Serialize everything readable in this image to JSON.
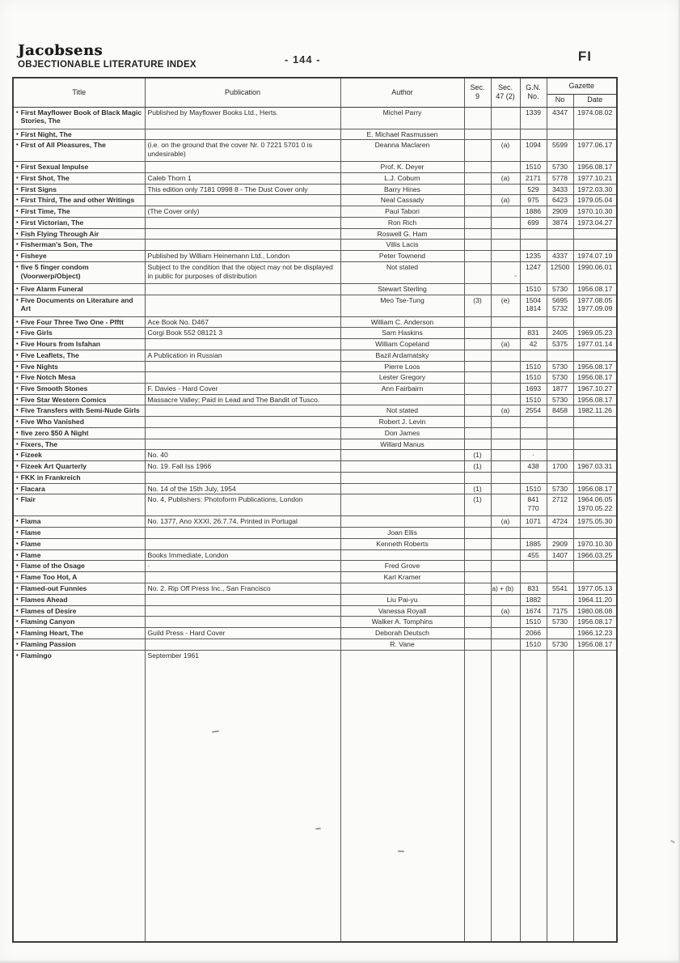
{
  "page": {
    "logo": "Jacobsens",
    "title": "OBJECTIONABLE LITERATURE INDEX",
    "page_number": "- 144 -",
    "corner_tab": "FI"
  },
  "table": {
    "row_marker": "•",
    "headers": {
      "title": "Title",
      "publication": "Publication",
      "author": "Author",
      "sec9": "Sec.\n9",
      "sec47": "Sec.\n47 (2)",
      "gn": "G.N.\nNo.",
      "gazette": "Gazette",
      "gazette_no": "No",
      "gazette_date": "Date"
    },
    "rows": [
      {
        "title": "First Mayflower Book of Black Magic Stories, The",
        "pub": "Published by Mayflower Books Ltd., Herts.",
        "author": "Michel Parry",
        "sec9": "",
        "sec47": "",
        "gn": "1339",
        "gaz_no": "4347",
        "gaz_date": "1974.08.02",
        "lines": 2
      },
      {
        "title": "First Night, The",
        "pub": "",
        "author": "E. Michael Rasmussen",
        "sec9": "",
        "sec47": "",
        "gn": "",
        "gaz_no": "",
        "gaz_date": "",
        "lines": 1
      },
      {
        "title": "First of All Pleasures, The",
        "pub": "(i.e. on the ground that the cover Nr. 0 7221 5701 0 is undesirable)",
        "author": "Deanna Maclaren",
        "sec9": "",
        "sec47": "(a)",
        "gn": "1094",
        "gaz_no": "5599",
        "gaz_date": "1977.06.17",
        "lines": 2
      },
      {
        "title": "First Sexual Impulse",
        "pub": "",
        "author": "Prof. K. Deyer",
        "sec9": "",
        "sec47": "",
        "gn": "1510",
        "gaz_no": "5730",
        "gaz_date": "1956.08.17",
        "lines": 1
      },
      {
        "title": "First Shot, The",
        "pub": "Caleb Thorn 1",
        "author": "L.J. Coburn",
        "sec9": "",
        "sec47": "(a)",
        "gn": "2171",
        "gaz_no": "5778",
        "gaz_date": "1977.10.21",
        "lines": 1
      },
      {
        "title": "First Signs",
        "pub": "This edition only 7181 0998 8 - The Dust Cover only",
        "author": "Barry Hines",
        "sec9": "",
        "sec47": "",
        "gn": "529",
        "gaz_no": "3433",
        "gaz_date": "1972.03.30",
        "lines": 1
      },
      {
        "title": "First Third, The and other Writings",
        "pub": "",
        "author": "Neal Cassady",
        "sec9": "",
        "sec47": "(a)",
        "gn": "975",
        "gaz_no": "6423",
        "gaz_date": "1979.05.04",
        "lines": 1
      },
      {
        "title": "First Time, The",
        "pub": "(The Cover only)",
        "author": "Paul Tabori",
        "sec9": "",
        "sec47": "",
        "gn": "1886",
        "gaz_no": "2909",
        "gaz_date": "1970.10.30",
        "lines": 1
      },
      {
        "title": "First Victorian, The",
        "pub": "",
        "author": "Ron Rich",
        "sec9": "",
        "sec47": "",
        "gn": "699",
        "gaz_no": "3874",
        "gaz_date": "1973.04.27",
        "lines": 1
      },
      {
        "title": "Fish Flying Through Air",
        "pub": "",
        "author": "Roswell G. Ham",
        "sec9": "",
        "sec47": "",
        "gn": "",
        "gaz_no": "",
        "gaz_date": "",
        "lines": 1
      },
      {
        "title": "Fisherman's Son, The",
        "pub": "",
        "author": "Villis Lacis",
        "sec9": "",
        "sec47": "",
        "gn": "",
        "gaz_no": "",
        "gaz_date": "",
        "lines": 1
      },
      {
        "title": "Fisheye",
        "pub": "Published by William Heinemann Ltd., London",
        "author": "Peter Townend",
        "sec9": "",
        "sec47": "",
        "gn": "1235",
        "gaz_no": "4337",
        "gaz_date": "1974.07.19",
        "lines": 1
      },
      {
        "title": "five 5 finger condom\n(Voorwerp/Object)",
        "pub": "Subject to the condition that the object may not be displayed in public for purposes of distribution",
        "author": "Not stated",
        "sec9": "",
        "sec47": "",
        "gn": "1247",
        "gaz_no": "12500",
        "gaz_date": "1990.06.01",
        "lines": 2
      },
      {
        "title": "Five Alarm Funeral",
        "pub": "",
        "author": "Stewart Sterling",
        "sec9": "",
        "sec47": "",
        "gn": "1510",
        "gaz_no": "5730",
        "gaz_date": "1956.08.17",
        "lines": 1
      },
      {
        "title": "Five Documents on Literature and Art",
        "pub": "",
        "author": "Meo Tse-Tung",
        "sec9": "(3)",
        "sec47": "(e)",
        "gn": "1504\n1814",
        "gaz_no": "5695\n5732",
        "gaz_date": "1977.08.05\n1977.09.09",
        "lines": 2
      },
      {
        "title": "Five Four Three Two One - Pfftt",
        "pub": "Ace Book No. D467",
        "author": "William C. Anderson",
        "sec9": "",
        "sec47": "",
        "gn": "",
        "gaz_no": "",
        "gaz_date": "",
        "lines": 1
      },
      {
        "title": "Five Girls",
        "pub": "Corgi Book 552 08121 3",
        "author": "Sam Haskins",
        "sec9": "",
        "sec47": "",
        "gn": "831",
        "gaz_no": "2405",
        "gaz_date": "1969.05.23",
        "lines": 1
      },
      {
        "title": "Five Hours from Isfahan",
        "pub": "",
        "author": "William Copeland",
        "sec9": "",
        "sec47": "(a)",
        "gn": "42",
        "gaz_no": "5375",
        "gaz_date": "1977.01.14",
        "lines": 1
      },
      {
        "title": "Five Leaflets, The",
        "pub": "A Publication in Russian",
        "author": "Bazil Ardamatsky",
        "sec9": "",
        "sec47": "",
        "gn": "",
        "gaz_no": "",
        "gaz_date": "",
        "lines": 1
      },
      {
        "title": "Five Nights",
        "pub": "",
        "author": "Pierre Loos",
        "sec9": "",
        "sec47": "",
        "gn": "1510",
        "gaz_no": "5730",
        "gaz_date": "1956.08.17",
        "lines": 1
      },
      {
        "title": "Five Notch Mesa",
        "pub": "",
        "author": "Lester Gregory",
        "sec9": "",
        "sec47": "",
        "gn": "1510",
        "gaz_no": "5730",
        "gaz_date": "1956.08.17",
        "lines": 1
      },
      {
        "title": "Five Smooth Stones",
        "pub": "F. Davies - Hard Cover",
        "author": "Ann Fairbairn",
        "sec9": "",
        "sec47": "",
        "gn": "1693",
        "gaz_no": "1877",
        "gaz_date": "1967.10.27",
        "lines": 1
      },
      {
        "title": "Five Star Western Comics",
        "pub": "Massacre Valley; Paid in Lead and The Bandit of Tusco.",
        "author": "",
        "sec9": "",
        "sec47": "",
        "gn": "1510",
        "gaz_no": "5730",
        "gaz_date": "1956.08.17",
        "lines": 1
      },
      {
        "title": "Five Transfers with Semi-Nude Girls",
        "pub": "",
        "author": "Not stated",
        "sec9": "",
        "sec47": "(a)",
        "gn": "2554",
        "gaz_no": "8458",
        "gaz_date": "1982.11.26",
        "lines": 1
      },
      {
        "title": "Five Who Vanished",
        "pub": "",
        "author": "Robert J. Levin",
        "sec9": "",
        "sec47": "",
        "gn": "",
        "gaz_no": "",
        "gaz_date": "",
        "lines": 1
      },
      {
        "title": "five zero $50 A Night",
        "pub": "",
        "author": "Don James",
        "sec9": "",
        "sec47": "",
        "gn": "",
        "gaz_no": "",
        "gaz_date": "",
        "lines": 1
      },
      {
        "title": "Fixers, The",
        "pub": "",
        "author": "Willard Manus",
        "sec9": "",
        "sec47": "",
        "gn": "",
        "gaz_no": "",
        "gaz_date": "",
        "lines": 1
      },
      {
        "title": "Fizeek",
        "pub": "No. 40",
        "author": "",
        "sec9": "(1)",
        "sec47": "",
        "gn": "·",
        "gaz_no": "",
        "gaz_date": "",
        "lines": 1
      },
      {
        "title": "Fizeek Art Quarterly",
        "pub": "No. 19. Fall Iss 1966",
        "author": "",
        "sec9": "(1)",
        "sec47": "",
        "gn": "438",
        "gaz_no": "1700",
        "gaz_date": "1967.03.31",
        "lines": 1
      },
      {
        "title": "FKK in Frankreich",
        "pub": "",
        "author": "",
        "sec9": "",
        "sec47": "",
        "gn": "",
        "gaz_no": "",
        "gaz_date": "",
        "lines": 1
      },
      {
        "title": "Flacara",
        "pub": "No. 14 of the 15th July, 1954",
        "author": "",
        "sec9": "(1)",
        "sec47": "",
        "gn": "1510",
        "gaz_no": "5730",
        "gaz_date": "1956.08.17",
        "lines": 1
      },
      {
        "title": "Flair",
        "pub": "No. 4, Publishers: Photoform Publications, London",
        "author": "",
        "sec9": "(1)",
        "sec47": "",
        "gn": "841\n770",
        "gaz_no": "2712",
        "gaz_date": "1964.06.05\n1970.05.22",
        "lines": 2
      },
      {
        "title": "Flama",
        "pub": "No. 1377, Ano XXXI, 26.7.74.  Printed in Portugal",
        "author": "",
        "sec9": "",
        "sec47": "(a)",
        "gn": "1071",
        "gaz_no": "4724",
        "gaz_date": "1975.05.30",
        "lines": 1
      },
      {
        "title": "Flame",
        "pub": "",
        "author": "Joan Ellis",
        "sec9": "",
        "sec47": "",
        "gn": "",
        "gaz_no": "",
        "gaz_date": "",
        "lines": 1
      },
      {
        "title": "Flame",
        "pub": "",
        "author": "Kenneth Roberts",
        "sec9": "",
        "sec47": "",
        "gn": "1885",
        "gaz_no": "2909",
        "gaz_date": "1970.10.30",
        "lines": 1
      },
      {
        "title": "Flame",
        "pub": "Books Immediate, London",
        "author": "",
        "sec9": "",
        "sec47": "",
        "gn": "455",
        "gaz_no": "1407",
        "gaz_date": "1966.03.25",
        "lines": 1
      },
      {
        "title": "Flame of the Osage",
        "pub": "·",
        "author": "Fred Grove",
        "sec9": "",
        "sec47": "",
        "gn": "",
        "gaz_no": "",
        "gaz_date": "",
        "lines": 1
      },
      {
        "title": "Flame Too Hot, A",
        "pub": "",
        "author": "Karl Kramer",
        "sec9": "",
        "sec47": "",
        "gn": "",
        "gaz_no": "",
        "gaz_date": "",
        "lines": 1
      },
      {
        "title": "Flamed-out Funnies",
        "pub": "No. 2. Rip Off Press Inc., San Francisco",
        "author": "",
        "sec9": "",
        "sec47": "(a) + (b)",
        "gn": "831",
        "gaz_no": "5541",
        "gaz_date": "1977.05.13",
        "lines": 1
      },
      {
        "title": "Flames Ahead",
        "pub": "",
        "author": "Liu Pai-yu",
        "sec9": "",
        "sec47": "",
        "gn": "1882",
        "gaz_no": "",
        "gaz_date": "1964.11.20",
        "lines": 1
      },
      {
        "title": "Flames of Desire",
        "pub": "",
        "author": "Vanessa Royall",
        "sec9": "",
        "sec47": "(a)",
        "gn": "1674",
        "gaz_no": "7175",
        "gaz_date": "1980.08.08",
        "lines": 1
      },
      {
        "title": "Flaming Canyon",
        "pub": "",
        "author": "Walker A. Tomphins",
        "sec9": "",
        "sec47": "",
        "gn": "1510",
        "gaz_no": "5730",
        "gaz_date": "1956.08.17",
        "lines": 1
      },
      {
        "title": "Flaming Heart, The",
        "pub": "Guild Press  -  Hard Cover",
        "author": "Deborah Deutsch",
        "sec9": "",
        "sec47": "",
        "gn": "2066",
        "gaz_no": "",
        "gaz_date": "1966.12.23",
        "lines": 1
      },
      {
        "title": "Flaming Passion",
        "pub": "",
        "author": "R. Vane",
        "sec9": "",
        "sec47": "",
        "gn": "1510",
        "gaz_no": "5730",
        "gaz_date": "1956.08.17",
        "lines": 1
      },
      {
        "title": "Flamingo",
        "pub": "September 1961",
        "author": "",
        "sec9": "",
        "sec47": "",
        "gn": "",
        "gaz_no": "",
        "gaz_date": "",
        "lines": "fill"
      }
    ]
  }
}
